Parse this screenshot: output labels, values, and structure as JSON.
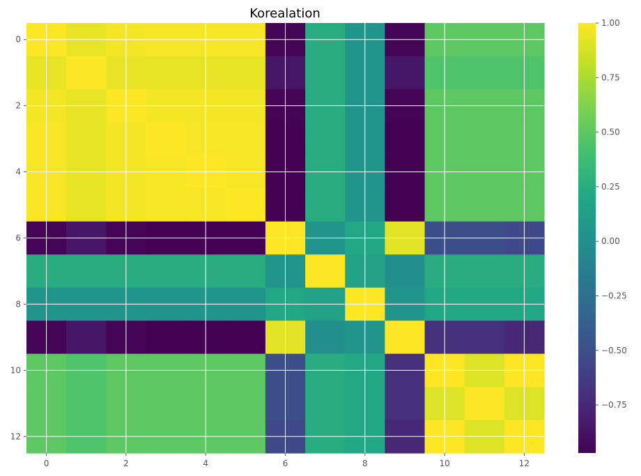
{
  "chart_data": {
    "type": "heatmap",
    "title": "Korealation",
    "x_ticks": [
      0,
      2,
      4,
      6,
      8,
      10,
      12
    ],
    "y_ticks": [
      0,
      2,
      4,
      6,
      8,
      10,
      12
    ],
    "rows": 13,
    "cols": 13,
    "color_range": [
      -0.97,
      1.0
    ],
    "colorbar_ticks": [
      1.0,
      0.75,
      0.5,
      0.25,
      0.0,
      -0.25,
      -0.5,
      -0.75
    ],
    "colorbar_tick_labels": [
      "1.00",
      "0.75",
      "0.50",
      "0.25",
      "0.00",
      "−0.25",
      "−0.50",
      "−0.75"
    ],
    "colormap": "viridis",
    "grid": true,
    "values": [
      [
        1.0,
        0.93,
        0.97,
        0.98,
        0.98,
        0.98,
        -0.95,
        0.25,
        0.05,
        -0.95,
        0.5,
        0.5,
        0.5
      ],
      [
        0.93,
        1.0,
        0.93,
        0.93,
        0.93,
        0.93,
        -0.85,
        0.25,
        0.05,
        -0.85,
        0.45,
        0.45,
        0.45
      ],
      [
        0.97,
        0.93,
        1.0,
        0.97,
        0.97,
        0.97,
        -0.95,
        0.25,
        0.05,
        -0.95,
        0.5,
        0.5,
        0.5
      ],
      [
        0.98,
        0.93,
        0.97,
        1.0,
        0.98,
        0.98,
        -0.97,
        0.25,
        0.05,
        -0.97,
        0.5,
        0.5,
        0.5
      ],
      [
        0.98,
        0.93,
        0.97,
        0.98,
        1.0,
        0.98,
        -0.97,
        0.25,
        0.05,
        -0.97,
        0.5,
        0.5,
        0.5
      ],
      [
        0.98,
        0.93,
        0.97,
        0.98,
        0.98,
        1.0,
        -0.97,
        0.25,
        0.05,
        -0.97,
        0.5,
        0.5,
        0.5
      ],
      [
        -0.95,
        -0.85,
        -0.95,
        -0.97,
        -0.97,
        -0.97,
        1.0,
        0.05,
        0.2,
        0.92,
        -0.5,
        -0.5,
        -0.55
      ],
      [
        0.25,
        0.25,
        0.25,
        0.25,
        0.25,
        0.25,
        0.05,
        1.0,
        0.15,
        0.0,
        0.25,
        0.25,
        0.25
      ],
      [
        0.05,
        0.05,
        0.05,
        0.05,
        0.05,
        0.05,
        0.2,
        0.15,
        1.0,
        0.05,
        0.2,
        0.2,
        0.2
      ],
      [
        -0.95,
        -0.85,
        -0.95,
        -0.97,
        -0.97,
        -0.97,
        0.92,
        0.0,
        0.05,
        1.0,
        -0.7,
        -0.7,
        -0.75
      ],
      [
        0.5,
        0.45,
        0.5,
        0.5,
        0.5,
        0.5,
        -0.5,
        0.25,
        0.2,
        -0.7,
        1.0,
        0.9,
        1.0
      ],
      [
        0.5,
        0.45,
        0.5,
        0.5,
        0.5,
        0.5,
        -0.5,
        0.25,
        0.2,
        -0.7,
        0.9,
        1.0,
        0.9
      ],
      [
        0.5,
        0.45,
        0.5,
        0.5,
        0.5,
        0.5,
        -0.55,
        0.25,
        0.2,
        -0.75,
        1.0,
        0.9,
        1.0
      ]
    ]
  }
}
